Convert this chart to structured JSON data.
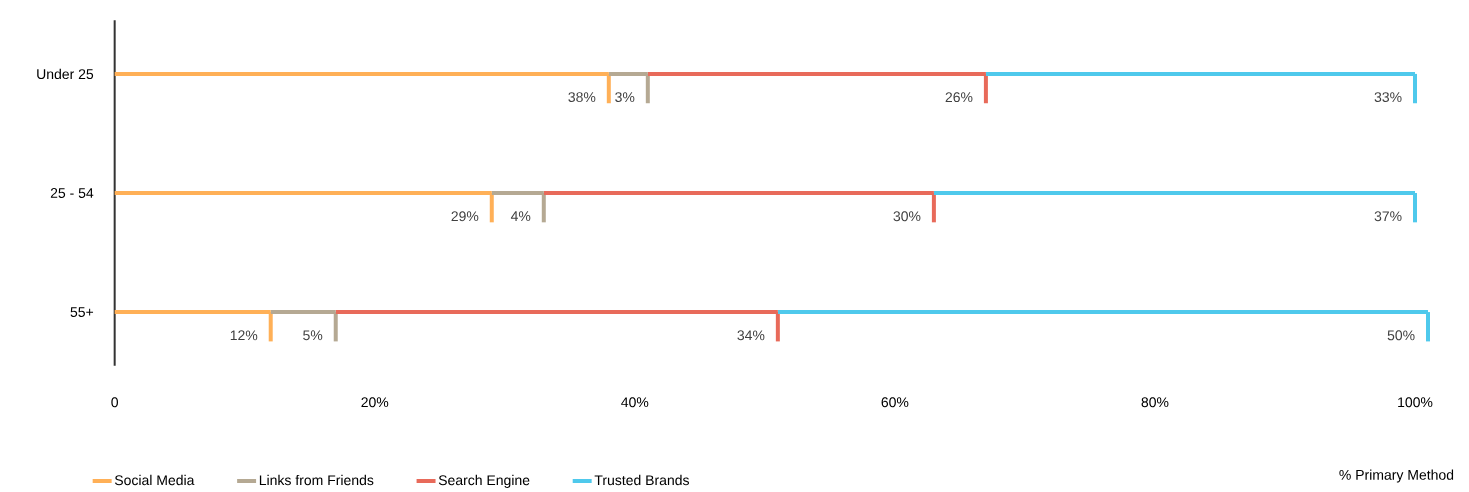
{
  "chart_data": {
    "type": "bar",
    "orientation": "horizontal",
    "stacked": true,
    "xlabel": "% Primary Method",
    "legend": "bottom left",
    "categories": [
      "Under 25",
      "25 - 54",
      "55+"
    ],
    "series": [
      {
        "name": "Social Media",
        "color": "#ffb057",
        "values": [
          38,
          29,
          12
        ],
        "value_labels": [
          "38%",
          "29%",
          "12%"
        ]
      },
      {
        "name": "Links from Friends",
        "color": "#b5a993",
        "values": [
          3,
          4,
          5
        ],
        "value_labels": [
          "3%",
          "4%",
          "5%"
        ]
      },
      {
        "name": "Search Engine",
        "color": "#e86a5a",
        "values": [
          26,
          30,
          34
        ],
        "value_labels": [
          "26%",
          "30%",
          "34%"
        ]
      },
      {
        "name": "Trusted Brands",
        "color": "#4fc9ec",
        "values": [
          33,
          37,
          50
        ],
        "value_labels": [
          "33%",
          "37%",
          "50%"
        ]
      }
    ],
    "xlim": [
      0,
      101
    ],
    "xticks": [
      0,
      {
        "value": 20,
        "label": "20%"
      },
      {
        "value": 40,
        "label": "40%"
      },
      {
        "value": 60,
        "label": "60%"
      },
      {
        "value": 80,
        "label": "80%"
      },
      {
        "value": 100,
        "label": "100%"
      }
    ]
  }
}
